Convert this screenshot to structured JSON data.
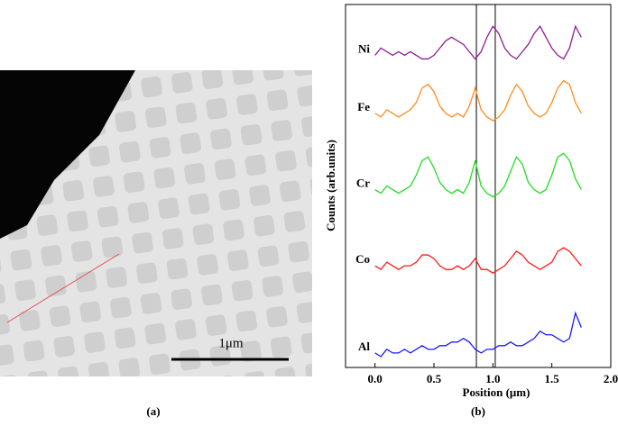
{
  "panel_a": {
    "label": "(a)",
    "scale_bar": "1μm"
  },
  "chart_data": {
    "type": "line",
    "panel_label": "(b)",
    "x_label": "Position (μm)",
    "y_label": "Counts (arb.units)",
    "x": [
      0,
      0.05,
      0.1,
      0.15,
      0.2,
      0.25,
      0.3,
      0.35,
      0.4,
      0.45,
      0.5,
      0.55,
      0.6,
      0.65,
      0.7,
      0.75,
      0.8,
      0.85,
      0.9,
      0.95,
      1.0,
      1.05,
      1.1,
      1.15,
      1.2,
      1.25,
      1.3,
      1.35,
      1.4,
      1.45,
      1.5,
      1.55,
      1.6,
      1.65,
      1.7,
      1.75
    ],
    "series": [
      {
        "name": "Ni",
        "color": "#8e1f93",
        "values": [
          86,
          88,
          87,
          86,
          87,
          86,
          87,
          86,
          85,
          85,
          86,
          88,
          90,
          91,
          90,
          89,
          87,
          85,
          87,
          91,
          94,
          92,
          88,
          86,
          85,
          87,
          89,
          92,
          94,
          91,
          88,
          86,
          85,
          88,
          94,
          91
        ]
      },
      {
        "name": "Fe",
        "color": "#ff8c1a",
        "values": [
          70,
          69,
          71,
          70,
          69,
          70,
          71,
          73,
          77,
          78,
          76,
          72,
          70,
          69,
          70,
          69,
          72,
          77,
          71,
          69,
          68,
          69,
          71,
          75,
          78,
          76,
          72,
          70,
          69,
          70,
          73,
          77,
          79,
          78,
          73,
          70
        ]
      },
      {
        "name": "Cr",
        "color": "#22dd22",
        "values": [
          49,
          48,
          50,
          49,
          48,
          49,
          50,
          53,
          57,
          58,
          55,
          51,
          49,
          48,
          49,
          48,
          51,
          57,
          50,
          48,
          47,
          48,
          50,
          54,
          58,
          56,
          51,
          49,
          48,
          49,
          53,
          58,
          59,
          57,
          52,
          49
        ]
      },
      {
        "name": "Co",
        "color": "#ff1a1a",
        "values": [
          28,
          27,
          29,
          28,
          27,
          28,
          28,
          29,
          31,
          31,
          30,
          28,
          27,
          27,
          28,
          27,
          28,
          30,
          27,
          27,
          26,
          27,
          28,
          30,
          32,
          31,
          29,
          28,
          27,
          28,
          29,
          32,
          33,
          32,
          30,
          28
        ]
      },
      {
        "name": "Al",
        "color": "#1a1aff",
        "values": [
          4,
          3,
          5,
          4,
          4,
          5,
          4,
          5,
          6,
          5,
          5,
          6,
          6,
          7,
          7,
          8,
          7,
          5,
          4,
          5,
          5,
          6,
          6,
          7,
          6,
          6,
          7,
          8,
          10,
          9,
          9,
          8,
          7,
          8,
          15,
          11
        ]
      }
    ],
    "markers": [
      0.86,
      1.02
    ],
    "xlim": [
      -0.25,
      2.0
    ],
    "ylim": [
      0,
      100
    ],
    "xticks": [
      {
        "value": 0,
        "label": "0.0"
      },
      {
        "value": 0.5,
        "label": "0.5"
      },
      {
        "value": 1,
        "label": "1.0"
      },
      {
        "value": 1.5,
        "label": "1.5"
      },
      {
        "value": 2,
        "label": "2.0"
      }
    ]
  }
}
